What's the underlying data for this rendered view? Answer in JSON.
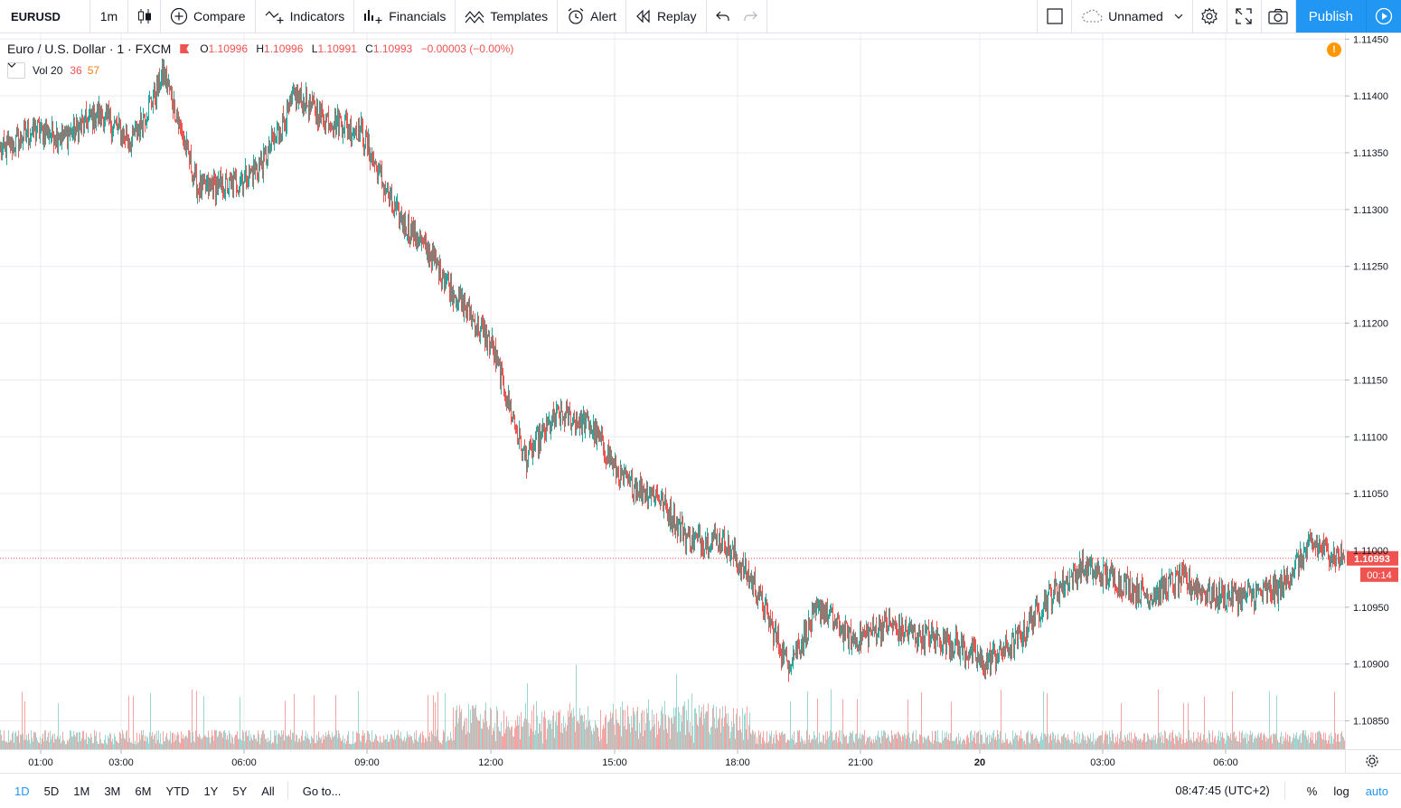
{
  "toolbar": {
    "symbol": "EURUSD",
    "interval": "1m",
    "compare": "Compare",
    "indicators": "Indicators",
    "financials": "Financials",
    "templates": "Templates",
    "alert": "Alert",
    "replay": "Replay",
    "layout_name": "Unnamed",
    "publish": "Publish"
  },
  "legend": {
    "name": "Euro / U.S. Dollar · 1 · FXCM",
    "open_label": "O",
    "open": "1.10996",
    "high_label": "H",
    "high": "1.10996",
    "low_label": "L",
    "low": "1.10991",
    "close_label": "C",
    "close": "1.10993",
    "change": "−0.00003 (−0.00%)",
    "vol_name": "Vol 20",
    "vol_value": "36",
    "vol_ma": "57",
    "warning_glyph": "!"
  },
  "colors": {
    "up": "#26a69a",
    "down": "#ef5350",
    "accent": "#2196f3",
    "grid": "#e9ecf2",
    "warning": "#ff9800"
  },
  "chart_data": {
    "type": "candlestick",
    "symbol": "EURUSD",
    "interval": "1m",
    "ylim": [
      1.10825,
      1.11455
    ],
    "price_ticks": [
      "1.11450",
      "1.11400",
      "1.11350",
      "1.11300",
      "1.11250",
      "1.11200",
      "1.11150",
      "1.11100",
      "1.11050",
      "1.11000",
      "1.10950",
      "1.10900",
      "1.10850"
    ],
    "time_ticks": [
      "01:00",
      "03:00",
      "06:00",
      "09:00",
      "12:00",
      "15:00",
      "18:00",
      "21:00",
      "20",
      "03:00",
      "06:00"
    ],
    "last_price": "1.10993",
    "countdown": "00:14",
    "series": [
      {
        "name": "EURUSD",
        "x": [
          "00:00",
          "01:00",
          "02:00",
          "03:00",
          "04:00",
          "05:00",
          "06:00",
          "07:00",
          "08:00",
          "09:00",
          "10:00",
          "11:00",
          "11:30",
          "12:00",
          "12:30",
          "13:00",
          "13:30",
          "14:00",
          "14:30",
          "15:00",
          "15:30",
          "16:00",
          "16:30",
          "17:00",
          "17:30",
          "18:00",
          "19:00",
          "20:00",
          "21:00",
          "22:00",
          "23:00",
          "00:00",
          "01:00",
          "02:00",
          "03:00",
          "04:00",
          "05:00",
          "06:00",
          "07:00",
          "07:30",
          "08:00",
          "08:47"
        ],
        "close": [
          1.1135,
          1.1137,
          1.11365,
          1.11385,
          1.1136,
          1.1142,
          1.1132,
          1.1132,
          1.1134,
          1.114,
          1.1138,
          1.1137,
          1.113,
          1.11265,
          1.1122,
          1.1118,
          1.1108,
          1.1112,
          1.1111,
          1.1106,
          1.1105,
          1.1101,
          1.1101,
          1.1097,
          1.109,
          1.1095,
          1.1092,
          1.10935,
          1.10925,
          1.1092,
          1.109,
          1.1092,
          1.1096,
          1.10985,
          1.10975,
          1.1096,
          1.10975,
          1.1096,
          1.1096,
          1.10965,
          1.11005,
          1.10993
        ]
      }
    ],
    "volume_ylim": [
      0,
      100
    ]
  },
  "bottombar": {
    "ranges": [
      "1D",
      "5D",
      "1M",
      "3M",
      "6M",
      "YTD",
      "1Y",
      "5Y",
      "All"
    ],
    "goto": "Go to...",
    "clock": "08:47:45 (UTC+2)",
    "percent": "%",
    "log": "log",
    "auto": "auto"
  }
}
